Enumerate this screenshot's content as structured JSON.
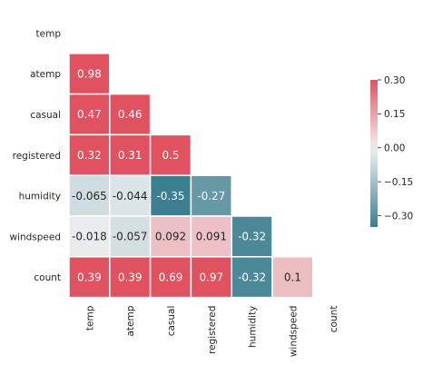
{
  "chart_data": {
    "type": "heatmap",
    "variant": "lower-triangle correlation matrix",
    "title": "",
    "xlabel": "",
    "ylabel": "",
    "row_labels": [
      "temp",
      "atemp",
      "casual",
      "registered",
      "humidity",
      "windspeed",
      "count"
    ],
    "column_labels": [
      "temp",
      "atemp",
      "casual",
      "registered",
      "humidity",
      "windspeed",
      "count"
    ],
    "cells": [
      {
        "row": "atemp",
        "col": "temp",
        "value": 0.98,
        "label": "0.98"
      },
      {
        "row": "casual",
        "col": "temp",
        "value": 0.47,
        "label": "0.47"
      },
      {
        "row": "casual",
        "col": "atemp",
        "value": 0.46,
        "label": "0.46"
      },
      {
        "row": "registered",
        "col": "temp",
        "value": 0.32,
        "label": "0.32"
      },
      {
        "row": "registered",
        "col": "atemp",
        "value": 0.31,
        "label": "0.31"
      },
      {
        "row": "registered",
        "col": "casual",
        "value": 0.5,
        "label": "0.5"
      },
      {
        "row": "humidity",
        "col": "temp",
        "value": -0.065,
        "label": "-0.065"
      },
      {
        "row": "humidity",
        "col": "atemp",
        "value": -0.044,
        "label": "-0.044"
      },
      {
        "row": "humidity",
        "col": "casual",
        "value": -0.35,
        "label": "-0.35"
      },
      {
        "row": "humidity",
        "col": "registered",
        "value": -0.27,
        "label": "-0.27"
      },
      {
        "row": "windspeed",
        "col": "temp",
        "value": -0.018,
        "label": "-0.018"
      },
      {
        "row": "windspeed",
        "col": "atemp",
        "value": -0.057,
        "label": "-0.057"
      },
      {
        "row": "windspeed",
        "col": "casual",
        "value": 0.092,
        "label": "0.092"
      },
      {
        "row": "windspeed",
        "col": "registered",
        "value": 0.091,
        "label": "0.091"
      },
      {
        "row": "windspeed",
        "col": "humidity",
        "value": -0.32,
        "label": "-0.32"
      },
      {
        "row": "count",
        "col": "temp",
        "value": 0.39,
        "label": "0.39"
      },
      {
        "row": "count",
        "col": "atemp",
        "value": 0.39,
        "label": "0.39"
      },
      {
        "row": "count",
        "col": "casual",
        "value": 0.69,
        "label": "0.69"
      },
      {
        "row": "count",
        "col": "registered",
        "value": 0.97,
        "label": "0.97"
      },
      {
        "row": "count",
        "col": "humidity",
        "value": -0.32,
        "label": "-0.32"
      },
      {
        "row": "count",
        "col": "windspeed",
        "value": 0.1,
        "label": "0.1"
      }
    ],
    "color_range": [
      -0.35,
      0.3
    ],
    "colorbar": {
      "ticks": [
        0.3,
        0.15,
        0.0,
        -0.15,
        -0.3
      ],
      "tick_labels": [
        "0.30",
        "0.15",
        "0.00",
        "−0.15",
        "−0.30"
      ]
    },
    "colors": {
      "negative": "#3c7f90",
      "center": "#f2f2f2",
      "positive": "#e0525f"
    },
    "grid": false,
    "legend": "colorbar right"
  }
}
